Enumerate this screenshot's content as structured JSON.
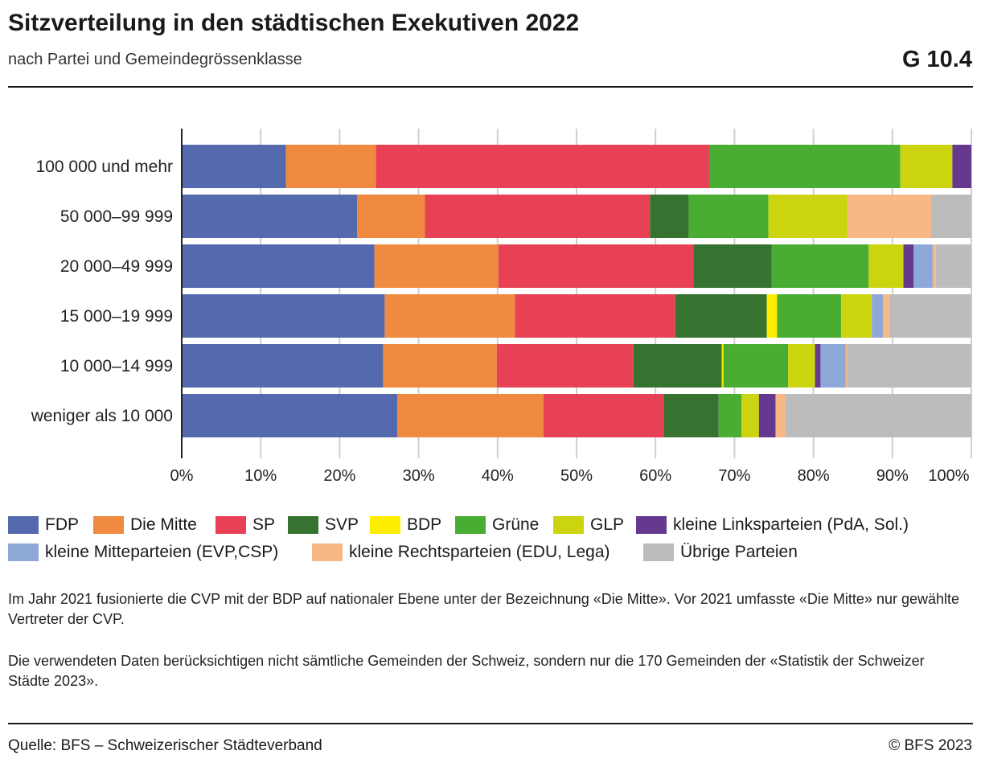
{
  "header": {
    "title": "Sitzverteilung in den städtischen Exekutiven 2022",
    "subtitle": "nach Partei und Gemeindegrössenklasse",
    "code": "G 10.4"
  },
  "chart_data": {
    "type": "bar",
    "orientation": "horizontal",
    "stacked": true,
    "categories": [
      "100 000 und mehr",
      "50 000–99 999",
      "20 000–49 999",
      "15 000–19 999",
      "10 000–14 999",
      "weniger als 10 000"
    ],
    "xlim": [
      0,
      100
    ],
    "xticks": [
      "0%",
      "10%",
      "20%",
      "30%",
      "40%",
      "50%",
      "60%",
      "70%",
      "80%",
      "90%",
      "100%"
    ],
    "grid": true,
    "legend_position": "bottom",
    "series": [
      {
        "name": "FDP",
        "color": "#5469ae",
        "values": [
          13.2,
          22.2,
          24.4,
          25.7,
          25.5,
          27.3
        ]
      },
      {
        "name": "Die Mitte",
        "color": "#f08a41",
        "values": [
          11.4,
          8.6,
          15.7,
          16.5,
          14.4,
          18.5
        ]
      },
      {
        "name": "SP",
        "color": "#e84155",
        "values": [
          42.2,
          28.5,
          24.7,
          20.3,
          17.3,
          15.3
        ]
      },
      {
        "name": "SVP",
        "color": "#367331",
        "values": [
          0,
          4.9,
          9.9,
          11.6,
          11.2,
          6.9
        ]
      },
      {
        "name": "BDP",
        "color": "#ffed00",
        "values": [
          0,
          0,
          0,
          1.3,
          0.2,
          0
        ]
      },
      {
        "name": "Grüne",
        "color": "#4aad33",
        "values": [
          24.2,
          10.1,
          12.3,
          8.1,
          8.2,
          2.9
        ]
      },
      {
        "name": "GLP",
        "color": "#ccd40f",
        "values": [
          6.6,
          10.0,
          4.4,
          3.9,
          3.4,
          2.2
        ]
      },
      {
        "name": "kleine Linksparteien (PdA, Sol.)",
        "color": "#653a8e",
        "values": [
          2.4,
          0,
          1.3,
          0,
          0.7,
          2.1
        ]
      },
      {
        "name": "kleine Mitteparteien (EVP,CSP)",
        "color": "#8ea8d8",
        "values": [
          0,
          0,
          2.4,
          1.4,
          3.2,
          0
        ]
      },
      {
        "name": "kleine Rechtsparteien (EDU, Lega)",
        "color": "#f8b886",
        "values": [
          0,
          10.6,
          0.4,
          0.8,
          0.2,
          1.2
        ]
      },
      {
        "name": "Übrige Parteien",
        "color": "#bcbcbc",
        "values": [
          0,
          5.1,
          4.5,
          10.4,
          15.7,
          23.6
        ]
      }
    ]
  },
  "notes": [
    "Im Jahr 2021 fusionierte die CVP mit der BDP auf nationaler Ebene unter der Bezeichnung «Die Mitte». Vor 2021 umfasste «Die Mitte» nur gewählte Vertreter der CVP.",
    "Die verwendeten Daten berücksichtigen nicht sämtliche Gemeinden der Schweiz, sondern nur die 170 Gemeinden der «Statistik der Schweizer Städte 2023»."
  ],
  "footer": {
    "source": "Quelle: BFS – Schweizerischer Städteverband",
    "copyright": "© BFS 2023"
  }
}
